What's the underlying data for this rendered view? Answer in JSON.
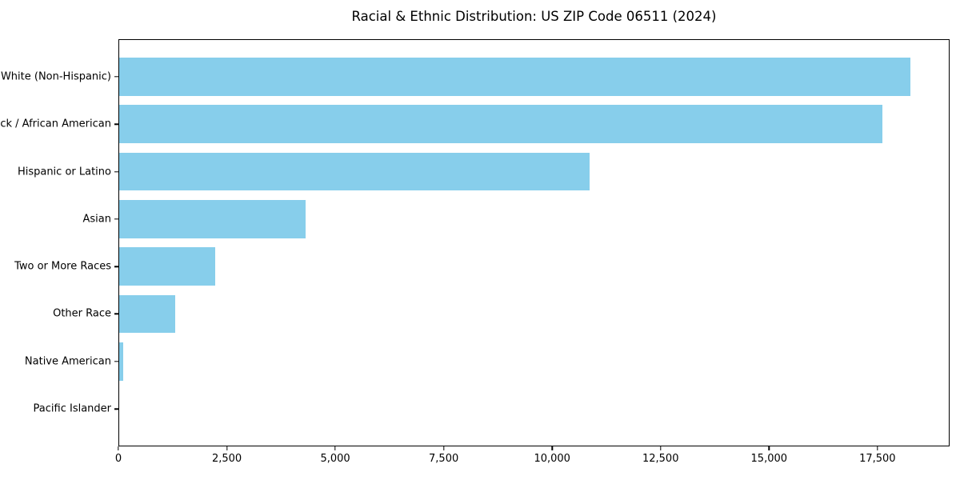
{
  "title": "Racial & Ethnic Distribution: US ZIP Code 06511 (2024)",
  "chart_data": {
    "type": "bar",
    "orientation": "horizontal",
    "title": "Racial & Ethnic Distribution: US ZIP Code 06511 (2024)",
    "xlabel": "",
    "ylabel": "",
    "categories": [
      "White (Non-Hispanic)",
      "Black / African American",
      "Hispanic or Latino",
      "Asian",
      "Two or More Races",
      "Other Race",
      "Native American",
      "Pacific Islander"
    ],
    "values": [
      18250,
      17600,
      10850,
      4300,
      2220,
      1300,
      90,
      0
    ],
    "xlim": [
      0,
      19163
    ],
    "x_ticks": [
      0,
      2500,
      5000,
      7500,
      10000,
      12500,
      15000,
      17500
    ],
    "x_tick_labels": [
      "0",
      "2,500",
      "5,000",
      "7,500",
      "10,000",
      "12,500",
      "15,000",
      "17,500"
    ],
    "bar_color": "#87CEEB",
    "axis_color": "#000000",
    "grid": false,
    "legend": null
  }
}
